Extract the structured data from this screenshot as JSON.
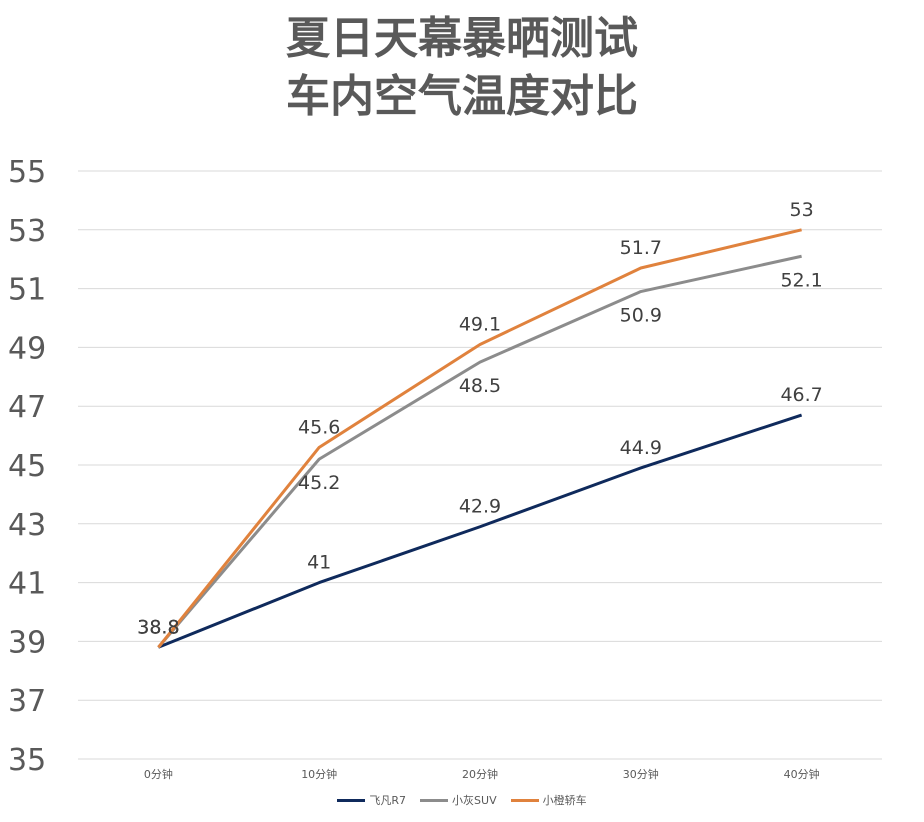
{
  "chart_data": {
    "type": "line",
    "title_line1": "夏日天幕暴晒测试",
    "title_line2": "车内空气温度对比",
    "categories": [
      "0分钟",
      "10分钟",
      "20分钟",
      "30分钟",
      "40分钟"
    ],
    "ylim": [
      35,
      55
    ],
    "yticks": [
      "35",
      "37",
      "39",
      "41",
      "43",
      "45",
      "47",
      "49",
      "51",
      "53",
      "55"
    ],
    "grid": true,
    "legend_position": "bottom",
    "series": [
      {
        "name": "飞凡R7",
        "color": "#0f2a5c",
        "values": [
          38.8,
          41,
          42.9,
          44.9,
          46.7
        ],
        "labels": [
          "38.8",
          "41",
          "42.9",
          "44.9",
          "46.7"
        ]
      },
      {
        "name": "小灰SUV",
        "color": "#8c8c8c",
        "values": [
          38.8,
          45.2,
          48.5,
          50.9,
          52.1
        ],
        "labels": [
          "38.8",
          "45.2",
          "48.5",
          "50.9",
          "52.1"
        ]
      },
      {
        "name": "小橙轿车",
        "color": "#e0823d",
        "values": [
          38.8,
          45.6,
          49.1,
          51.7,
          53
        ],
        "labels": [
          "38.8",
          "45.6",
          "49.1",
          "51.7",
          "53"
        ]
      }
    ]
  }
}
